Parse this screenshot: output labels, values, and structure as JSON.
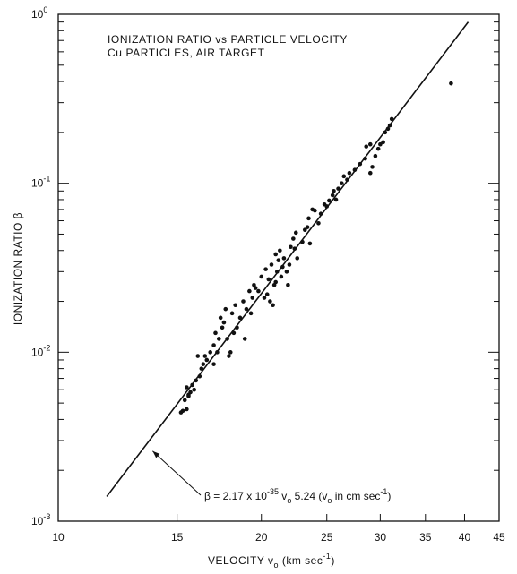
{
  "chart_data": {
    "type": "scatter",
    "title": "IONIZATION RATIO vs PARTICLE VELOCITY",
    "subtitle": "Cu PARTICLES, AIR TARGET",
    "xlabel_parts": {
      "main": "VELOCITY v",
      "sub": "o",
      "units": " (km sec",
      "sup": "-1",
      "close": ")"
    },
    "ylabel": "IONIZATION RATIO β",
    "x_scale": "log",
    "y_scale": "log",
    "xlim": [
      10,
      45
    ],
    "ylim": [
      0.001,
      1
    ],
    "x_ticks": [
      {
        "value": 10,
        "label": "10"
      },
      {
        "value": 15,
        "label": "15"
      },
      {
        "value": 20,
        "label": "20"
      },
      {
        "value": 25,
        "label": "25"
      },
      {
        "value": 30,
        "label": "30"
      },
      {
        "value": 35,
        "label": "35"
      },
      {
        "value": 40,
        "label": "40"
      },
      {
        "value": 45,
        "label": "45"
      }
    ],
    "y_decade_ticks": [
      {
        "value": 0.001,
        "base": "10",
        "exp": "-3"
      },
      {
        "value": 0.01,
        "base": "10",
        "exp": "-2"
      },
      {
        "value": 0.1,
        "base": "10",
        "exp": "-1"
      },
      {
        "value": 1,
        "base": "10",
        "exp": "0"
      }
    ],
    "y_minor_ticks": [
      0.002,
      0.003,
      0.004,
      0.005,
      0.006,
      0.007,
      0.008,
      0.009,
      0.02,
      0.03,
      0.04,
      0.05,
      0.06,
      0.07,
      0.08,
      0.09,
      0.2,
      0.3,
      0.4,
      0.5,
      0.6,
      0.7,
      0.8,
      0.9
    ],
    "fit_line": {
      "x": [
        11.8,
        40.5
      ],
      "y": [
        0.0014,
        0.9
      ]
    },
    "annotation": {
      "parts": [
        "β = 2.17 x 10",
        "-35",
        " v",
        "o",
        " 5.24 (v",
        "o",
        " in cm sec",
        "-1",
        ")"
      ],
      "arrow_to": {
        "x": 13.8,
        "y": 0.0026
      }
    },
    "grid": false,
    "series": [
      {
        "x": [
          15.2,
          15.3,
          15.5,
          15.4,
          15.6,
          15.7,
          15.9,
          15.5,
          15.6,
          15.8,
          16.0,
          16.2,
          16.3,
          16.4,
          16.6,
          16.5,
          16.8,
          17.0,
          17.2,
          17.1,
          17.3,
          17.5,
          17.6,
          17.8,
          17.0,
          17.4,
          17.7,
          17.9,
          18.0,
          18.2,
          18.4,
          18.1,
          18.3,
          18.6,
          18.8,
          19.0,
          19.2,
          19.4,
          19.5,
          19.8,
          19.3,
          19.6,
          20.0,
          20.2,
          20.4,
          20.3,
          20.5,
          20.6,
          20.8,
          20.7,
          21.0,
          21.1,
          21.2,
          21.0,
          20.9,
          21.3,
          21.5,
          21.6,
          21.4,
          21.8,
          22.0,
          22.1,
          21.9,
          22.3,
          22.5,
          22.6,
          22.4,
          23.0,
          23.2,
          23.4,
          23.5,
          23.8,
          24.0,
          24.3,
          24.5,
          24.8,
          25.0,
          25.2,
          25.5,
          25.6,
          25.8,
          26.0,
          26.3,
          26.5,
          26.8,
          27.0,
          27.5,
          28.0,
          28.5,
          29.0,
          29.2,
          29.5,
          29.8,
          30.0,
          30.3,
          30.5,
          30.8,
          31.0,
          31.2,
          38.2,
          29.0,
          28.6,
          16.1,
          18.9,
          23.6
        ],
        "y": [
          0.0044,
          0.0045,
          0.0046,
          0.0052,
          0.0055,
          0.0058,
          0.006,
          0.0062,
          0.0056,
          0.0064,
          0.0068,
          0.0072,
          0.008,
          0.0085,
          0.009,
          0.0095,
          0.01,
          0.011,
          0.01,
          0.013,
          0.012,
          0.014,
          0.015,
          0.012,
          0.0085,
          0.016,
          0.018,
          0.0095,
          0.01,
          0.013,
          0.014,
          0.017,
          0.019,
          0.016,
          0.02,
          0.018,
          0.023,
          0.021,
          0.025,
          0.023,
          0.017,
          0.024,
          0.028,
          0.021,
          0.022,
          0.031,
          0.027,
          0.02,
          0.019,
          0.033,
          0.026,
          0.03,
          0.035,
          0.038,
          0.025,
          0.04,
          0.032,
          0.036,
          0.028,
          0.03,
          0.033,
          0.042,
          0.025,
          0.047,
          0.051,
          0.036,
          0.041,
          0.045,
          0.053,
          0.055,
          0.062,
          0.07,
          0.069,
          0.058,
          0.066,
          0.075,
          0.073,
          0.079,
          0.085,
          0.09,
          0.08,
          0.093,
          0.1,
          0.11,
          0.105,
          0.115,
          0.12,
          0.13,
          0.14,
          0.115,
          0.125,
          0.145,
          0.16,
          0.17,
          0.175,
          0.2,
          0.21,
          0.22,
          0.24,
          0.39,
          0.17,
          0.165,
          0.0095,
          0.012,
          0.044
        ]
      }
    ]
  }
}
